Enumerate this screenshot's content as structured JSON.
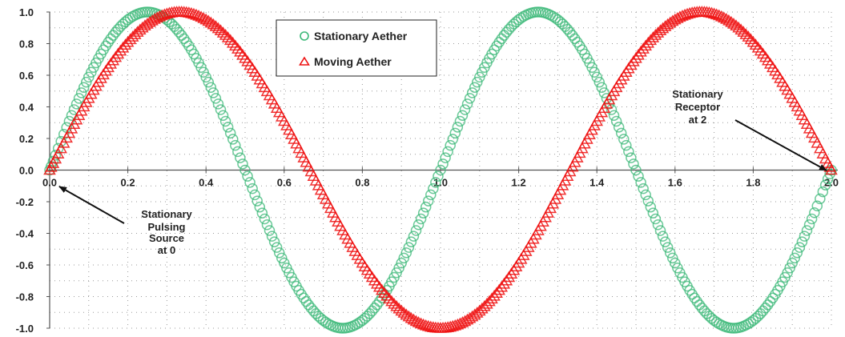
{
  "chart_data": {
    "type": "scatter",
    "title": "",
    "xlabel": "",
    "ylabel": "",
    "xlim": [
      0,
      2
    ],
    "ylim": [
      -1,
      1
    ],
    "x_ticks": [
      "0.0",
      "0.2",
      "0.4",
      "0.6",
      "0.8",
      "1.0",
      "1.2",
      "1.4",
      "1.6",
      "1.8",
      "2.0"
    ],
    "y_ticks": [
      "1.0",
      "0.8",
      "0.6",
      "0.4",
      "0.2",
      "0.0",
      "-0.2",
      "-0.4",
      "-0.6",
      "-0.8",
      "-1.0"
    ],
    "grid": "dotted",
    "legend_position": "top-center",
    "series": [
      {
        "name": "Stationary Aether",
        "marker": "circle",
        "color": "#3cb878",
        "x": [
          0,
          0.05,
          0.1,
          0.15,
          0.2,
          0.25,
          0.3,
          0.35,
          0.4,
          0.45,
          0.5,
          0.55,
          0.6,
          0.65,
          0.7,
          0.75,
          0.8,
          0.85,
          0.9,
          0.95,
          1.0,
          1.05,
          1.1,
          1.15,
          1.2,
          1.25,
          1.3,
          1.35,
          1.4,
          1.45,
          1.5,
          1.55,
          1.6,
          1.65,
          1.7,
          1.75,
          1.8,
          1.85,
          1.9,
          1.95,
          2.0
        ],
        "y": [
          0,
          0.309,
          0.588,
          0.809,
          0.951,
          1.0,
          0.951,
          0.809,
          0.588,
          0.309,
          0,
          -0.309,
          -0.588,
          -0.809,
          -0.951,
          -1.0,
          -0.951,
          -0.809,
          -0.588,
          -0.309,
          0,
          0.309,
          0.588,
          0.809,
          0.951,
          1.0,
          0.951,
          0.809,
          0.588,
          0.309,
          0,
          -0.309,
          -0.588,
          -0.809,
          -0.951,
          -1.0,
          -0.951,
          -0.809,
          -0.588,
          -0.309,
          0
        ]
      },
      {
        "name": "Moving Aether",
        "marker": "triangle",
        "color": "#ee1111",
        "x": [
          0,
          0.05,
          0.1,
          0.15,
          0.2,
          0.25,
          0.3,
          0.35,
          0.4,
          0.45,
          0.5,
          0.55,
          0.6,
          0.65,
          0.7,
          0.75,
          0.8,
          0.85,
          0.9,
          0.95,
          1.0,
          1.05,
          1.1,
          1.15,
          1.2,
          1.25,
          1.3,
          1.35,
          1.4,
          1.45,
          1.5,
          1.55,
          1.6,
          1.65,
          1.7,
          1.75,
          1.8,
          1.85,
          1.9,
          1.95,
          2.0
        ],
        "y": [
          0,
          0.233,
          0.454,
          0.649,
          0.809,
          0.924,
          0.988,
          0.997,
          0.951,
          0.853,
          0.707,
          0.522,
          0.309,
          0.078,
          -0.156,
          -0.383,
          -0.588,
          -0.76,
          -0.891,
          -0.972,
          -1.0,
          -0.972,
          -0.891,
          -0.76,
          -0.588,
          -0.383,
          -0.156,
          0.078,
          0.309,
          0.522,
          0.707,
          0.853,
          0.951,
          0.997,
          0.988,
          0.924,
          0.809,
          0.649,
          0.454,
          0.233,
          0
        ]
      }
    ],
    "annotations": [
      {
        "lines": [
          "Stationary",
          "Pulsing",
          "Source",
          "at 0"
        ],
        "points_to": [
          0,
          0
        ]
      },
      {
        "lines": [
          "Stationary",
          "Receptor",
          "at 2"
        ],
        "points_to": [
          2,
          0
        ]
      }
    ]
  }
}
